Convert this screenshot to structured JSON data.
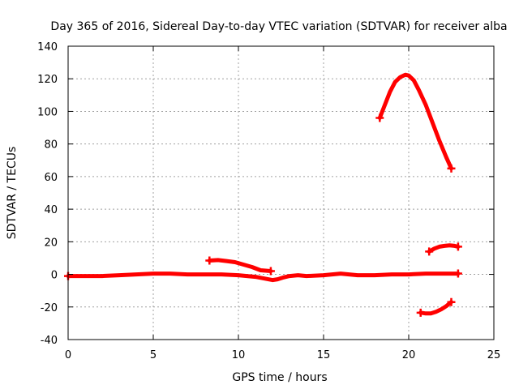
{
  "chart_data": {
    "type": "line",
    "title": "Day 365 of 2016, Sidereal Day-to-day VTEC variation (SDTVAR) for receiver alba",
    "xlabel": "GPS time / hours",
    "ylabel": "SDTVAR / TECUs",
    "xlim": [
      0,
      25
    ],
    "ylim": [
      -40,
      140
    ],
    "xticks": [
      "0",
      "5",
      "10",
      "15",
      "20",
      "25"
    ],
    "yticks": [
      "-40",
      "-20",
      "0",
      "20",
      "40",
      "60",
      "80",
      "100",
      "120",
      "140"
    ],
    "grid": true,
    "marker": "plus",
    "color": "#ff0000",
    "series": [
      {
        "x": [
          0,
          1,
          2,
          3,
          4,
          5,
          6,
          7,
          8,
          9,
          10,
          10.5,
          11,
          11.5,
          12,
          12.3,
          12.6,
          13,
          13.5,
          14,
          15,
          15.5,
          16,
          16.5,
          17,
          18,
          19,
          20,
          21,
          22,
          22.9
        ],
        "y": [
          -1,
          -1,
          -1,
          -0.5,
          0,
          0.5,
          0.5,
          0,
          0,
          0,
          -0.5,
          -1,
          -1.5,
          -2.5,
          -3.5,
          -3,
          -2,
          -1,
          -0.5,
          -1,
          -0.5,
          0,
          0.5,
          0,
          -0.5,
          -0.5,
          0,
          0,
          0.5,
          0.5,
          0.5
        ]
      },
      {
        "x": [
          8.3,
          8.8,
          9.3,
          9.8,
          10.3,
          10.8,
          11.3,
          11.9
        ],
        "y": [
          8.5,
          8.8,
          8.2,
          7.5,
          6.0,
          4.5,
          2.5,
          2.0
        ]
      },
      {
        "x": [
          18.3,
          18.6,
          18.9,
          19.2,
          19.5,
          19.8,
          20.0,
          20.3,
          20.6,
          21.0,
          21.4,
          21.8,
          22.2,
          22.5
        ],
        "y": [
          96,
          104,
          112,
          118,
          121,
          122.5,
          122,
          119,
          113,
          104,
          93,
          82,
          72,
          65
        ]
      },
      {
        "x": [
          21.2,
          21.5,
          21.8,
          22.1,
          22.4,
          22.7,
          22.9
        ],
        "y": [
          14,
          15.8,
          17,
          17.5,
          17.8,
          17.5,
          17
        ]
      },
      {
        "x": [
          20.7,
          21.0,
          21.3,
          21.6,
          21.9,
          22.2,
          22.5
        ],
        "y": [
          -23.5,
          -24,
          -24,
          -23,
          -21.5,
          -19.5,
          -17
        ]
      }
    ]
  }
}
